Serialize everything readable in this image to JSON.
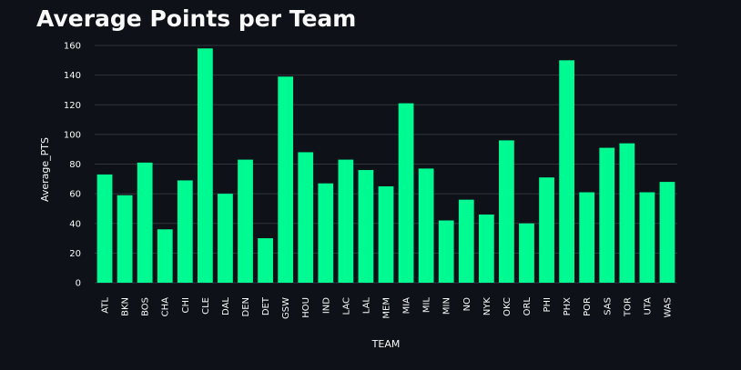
{
  "title": "Average Points per Team",
  "colors": {
    "background": "#0e1117",
    "bar": "#00fa92",
    "gridline": "#31333f",
    "text": "#fafafa"
  },
  "chart_data": {
    "type": "bar",
    "title": "Average Points per Team",
    "xlabel": "TEAM",
    "ylabel": "Average_PTS",
    "ylim": [
      0,
      160
    ],
    "yticks": [
      0,
      20,
      40,
      60,
      80,
      100,
      120,
      140,
      160
    ],
    "grid": true,
    "categories": [
      "ATL",
      "BKN",
      "BOS",
      "CHA",
      "CHI",
      "CLE",
      "DAL",
      "DEN",
      "DET",
      "GSW",
      "HOU",
      "IND",
      "LAC",
      "LAL",
      "MEM",
      "MIA",
      "MIL",
      "MIN",
      "NO",
      "NYK",
      "OKC",
      "ORL",
      "PHI",
      "PHX",
      "POR",
      "SAS",
      "TOR",
      "UTA",
      "WAS"
    ],
    "values": [
      73,
      59,
      81,
      36,
      69,
      158,
      60,
      83,
      30,
      139,
      88,
      67,
      83,
      76,
      65,
      121,
      77,
      42,
      56,
      46,
      96,
      40,
      71,
      150,
      61,
      91,
      94,
      61,
      68
    ]
  }
}
